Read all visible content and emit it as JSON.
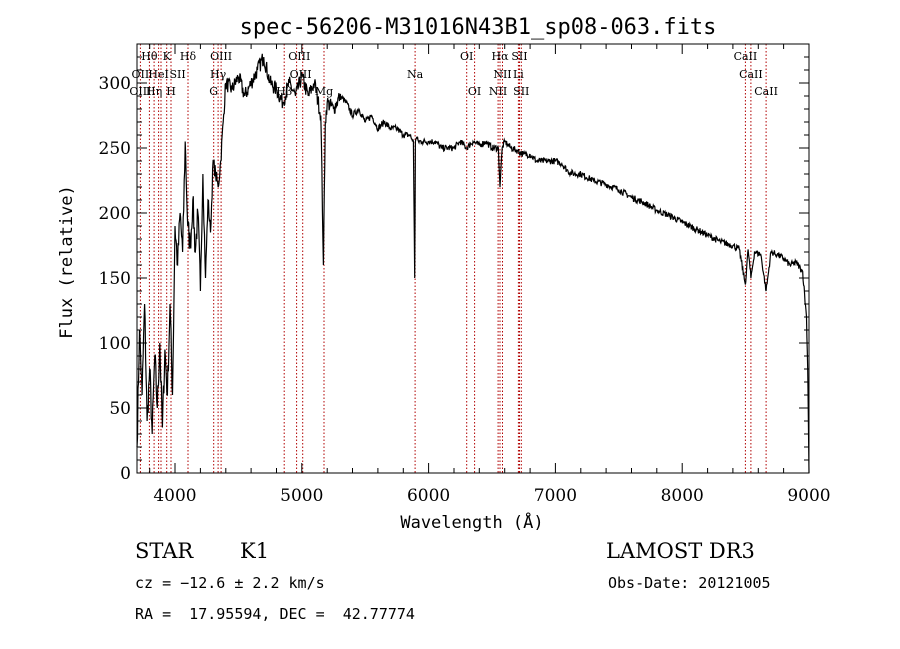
{
  "chart_data": {
    "type": "line",
    "title": "spec-56206-M31016N43B1_sp08-063.fits",
    "xlabel": "Wavelength (Å)",
    "ylabel": "Flux (relative)",
    "xlim": [
      3700,
      9000
    ],
    "ylim": [
      0,
      330
    ],
    "xticks": [
      4000,
      5000,
      6000,
      7000,
      8000,
      9000
    ],
    "yticks": [
      0,
      50,
      100,
      150,
      200,
      250,
      300
    ],
    "grid": false,
    "legend": "none",
    "series": [
      {
        "name": "flux",
        "x": [
          3700,
          3720,
          3740,
          3760,
          3780,
          3800,
          3820,
          3840,
          3860,
          3880,
          3900,
          3920,
          3940,
          3960,
          3980,
          4000,
          4020,
          4040,
          4060,
          4080,
          4100,
          4120,
          4140,
          4160,
          4180,
          4200,
          4220,
          4240,
          4260,
          4280,
          4300,
          4320,
          4340,
          4360,
          4380,
          4400,
          4450,
          4500,
          4550,
          4600,
          4650,
          4700,
          4750,
          4800,
          4850,
          4900,
          4950,
          5000,
          5050,
          5100,
          5150,
          5170,
          5185,
          5200,
          5250,
          5300,
          5350,
          5400,
          5450,
          5500,
          5550,
          5600,
          5650,
          5700,
          5750,
          5800,
          5850,
          5880,
          5890,
          5896,
          5905,
          5920,
          5950,
          6000,
          6050,
          6100,
          6150,
          6200,
          6250,
          6300,
          6350,
          6400,
          6450,
          6500,
          6550,
          6563,
          6580,
          6600,
          6650,
          6700,
          6750,
          6800,
          6850,
          6900,
          6950,
          7000,
          7050,
          7100,
          7150,
          7200,
          7300,
          7400,
          7500,
          7600,
          7700,
          7800,
          7900,
          8000,
          8100,
          8200,
          8300,
          8400,
          8450,
          8498,
          8520,
          8542,
          8570,
          8620,
          8662,
          8700,
          8750,
          8800,
          8850,
          8900,
          8950,
          8980,
          8990,
          9000
        ],
        "values": [
          20,
          110,
          60,
          130,
          40,
          80,
          30,
          90,
          50,
          100,
          35,
          95,
          60,
          130,
          60,
          190,
          160,
          200,
          170,
          255,
          190,
          175,
          210,
          170,
          200,
          140,
          230,
          150,
          210,
          185,
          240,
          230,
          220,
          240,
          270,
          300,
          295,
          305,
          290,
          300,
          310,
          320,
          300,
          295,
          285,
          300,
          290,
          305,
          290,
          300,
          275,
          160,
          270,
          285,
          280,
          290,
          285,
          275,
          280,
          270,
          275,
          265,
          270,
          265,
          265,
          260,
          260,
          255,
          150,
          255,
          258,
          255,
          255,
          255,
          255,
          250,
          250,
          250,
          255,
          250,
          255,
          252,
          255,
          250,
          250,
          220,
          250,
          255,
          250,
          248,
          245,
          245,
          240,
          240,
          240,
          240,
          238,
          232,
          230,
          230,
          225,
          222,
          218,
          212,
          208,
          202,
          198,
          193,
          188,
          183,
          178,
          175,
          172,
          145,
          172,
          150,
          170,
          168,
          140,
          170,
          168,
          165,
          160,
          162,
          155,
          120,
          80,
          0
        ]
      }
    ],
    "line_labels": [
      {
        "text": "Hθ",
        "wave": 3798,
        "row": 0
      },
      {
        "text": "K",
        "wave": 3934,
        "row": 0
      },
      {
        "text": "Hδ",
        "wave": 4102,
        "row": 0
      },
      {
        "text": "OIII",
        "wave": 4363,
        "row": 0
      },
      {
        "text": "OIII",
        "wave": 4980,
        "row": 0
      },
      {
        "text": "OI",
        "wave": 6300,
        "row": 0
      },
      {
        "text": "Hα",
        "wave": 6563,
        "row": 0
      },
      {
        "text": "SII",
        "wave": 6717,
        "row": 0
      },
      {
        "text": "CaII",
        "wave": 8498,
        "row": 0
      },
      {
        "text": "OII",
        "wave": 3727,
        "row": 1
      },
      {
        "text": "HeI",
        "wave": 3870,
        "row": 1
      },
      {
        "text": "SII",
        "wave": 4020,
        "row": 1
      },
      {
        "text": "Hγ",
        "wave": 4340,
        "row": 1
      },
      {
        "text": "OIII",
        "wave": 4990,
        "row": 1
      },
      {
        "text": "Na",
        "wave": 5893,
        "row": 1
      },
      {
        "text": "NII",
        "wave": 6583,
        "row": 1
      },
      {
        "text": "Li",
        "wave": 6708,
        "row": 1
      },
      {
        "text": "CaII",
        "wave": 8542,
        "row": 1
      },
      {
        "text": "OIII",
        "wave": 3727,
        "row": 2
      },
      {
        "text": "Hη",
        "wave": 3835,
        "row": 2
      },
      {
        "text": "H",
        "wave": 3968,
        "row": 2
      },
      {
        "text": "G",
        "wave": 4305,
        "row": 2
      },
      {
        "text": "Hβ",
        "wave": 4861,
        "row": 2
      },
      {
        "text": "Mg",
        "wave": 5175,
        "row": 2
      },
      {
        "text": "OI",
        "wave": 6363,
        "row": 2
      },
      {
        "text": "NII",
        "wave": 6548,
        "row": 2
      },
      {
        "text": "SII",
        "wave": 6731,
        "row": 2
      },
      {
        "text": "CaII",
        "wave": 8662,
        "row": 2
      }
    ],
    "reference_lines": [
      3727,
      3798,
      3835,
      3870,
      3889,
      3934,
      3968,
      4102,
      4305,
      4340,
      4363,
      4861,
      4959,
      5007,
      5175,
      5893,
      6300,
      6363,
      6548,
      6563,
      6583,
      6708,
      6717,
      6731,
      8498,
      8542,
      8662
    ]
  },
  "info": {
    "object_class": "STAR",
    "subclass": "K1",
    "survey": "LAMOST DR3",
    "cz": "cz = −12.6 ± 2.2 km/s",
    "obs_date": "Obs-Date: 20121005",
    "coords": "RA =  17.95594, DEC =  42.77774"
  },
  "colors": {
    "spectrum": "#000000",
    "reference_lines": "#b00000",
    "frame": "#000000"
  }
}
